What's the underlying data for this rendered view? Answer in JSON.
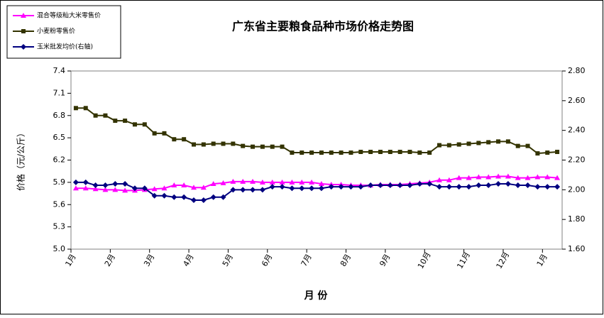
{
  "chart_data": {
    "type": "line",
    "title": "广东省主要粮食品种市场价格走势图",
    "y_label": "价格（元/公斤）",
    "x_label": "月 份",
    "categories": [
      "1月",
      null,
      null,
      null,
      "2月",
      null,
      null,
      null,
      "3月",
      null,
      null,
      null,
      "4月",
      null,
      null,
      null,
      "5月",
      null,
      null,
      null,
      "6月",
      null,
      null,
      null,
      "7月",
      null,
      null,
      null,
      "8月",
      null,
      null,
      null,
      "9月",
      null,
      null,
      null,
      "10月",
      null,
      null,
      null,
      "11月",
      null,
      null,
      null,
      "12月",
      null,
      null,
      null,
      "1月",
      null
    ],
    "series": [
      {
        "name": "混合等级籼大米零售价",
        "color": "#ff00ff",
        "marker": "triangle",
        "axis": "y",
        "values": [
          5.82,
          5.82,
          5.81,
          5.8,
          5.8,
          5.79,
          5.79,
          5.8,
          5.81,
          5.82,
          5.86,
          5.86,
          5.83,
          5.83,
          5.88,
          5.89,
          5.91,
          5.91,
          5.91,
          5.9,
          5.9,
          5.9,
          5.9,
          5.9,
          5.9,
          5.88,
          5.87,
          5.87,
          5.86,
          5.86,
          5.86,
          5.87,
          5.87,
          5.87,
          5.88,
          5.89,
          5.9,
          5.93,
          5.93,
          5.96,
          5.96,
          5.97,
          5.97,
          5.98,
          5.98,
          5.96,
          5.96,
          5.97,
          5.97,
          5.96
        ]
      },
      {
        "name": "小麦粉零售价",
        "color": "#333300",
        "marker": "square",
        "axis": "y",
        "values": [
          6.9,
          6.9,
          6.8,
          6.8,
          6.73,
          6.73,
          6.68,
          6.68,
          6.56,
          6.56,
          6.48,
          6.48,
          6.41,
          6.41,
          6.42,
          6.42,
          6.42,
          6.39,
          6.38,
          6.38,
          6.38,
          6.38,
          6.3,
          6.3,
          6.3,
          6.3,
          6.3,
          6.3,
          6.3,
          6.31,
          6.31,
          6.31,
          6.31,
          6.31,
          6.31,
          6.3,
          6.3,
          6.4,
          6.4,
          6.41,
          6.42,
          6.43,
          6.44,
          6.45,
          6.45,
          6.39,
          6.39,
          6.29,
          6.3,
          6.31
        ]
      },
      {
        "name": "玉米批发均价(右轴)",
        "color": "#000080",
        "marker": "diamond",
        "axis": "y2",
        "values": [
          2.05,
          2.05,
          2.03,
          2.03,
          2.04,
          2.04,
          2.01,
          2.01,
          1.96,
          1.96,
          1.95,
          1.95,
          1.93,
          1.93,
          1.95,
          1.95,
          2.0,
          2.0,
          2.0,
          2.0,
          2.02,
          2.02,
          2.01,
          2.01,
          2.01,
          2.01,
          2.02,
          2.02,
          2.02,
          2.02,
          2.03,
          2.03,
          2.03,
          2.03,
          2.03,
          2.04,
          2.04,
          2.02,
          2.02,
          2.02,
          2.02,
          2.03,
          2.03,
          2.04,
          2.04,
          2.03,
          2.03,
          2.02,
          2.02,
          2.02
        ]
      }
    ],
    "ylim": [
      5.0,
      7.4
    ],
    "yticks": [
      {
        "value": 5.0,
        "label": "5.0"
      },
      5.3,
      5.6,
      5.9,
      6.2,
      6.5,
      6.8,
      7.1,
      7.4
    ],
    "y2lim": [
      1.6,
      2.8
    ],
    "y2ticks": [
      {
        "value": 1.6,
        "label": "1.60"
      },
      {
        "value": 1.8,
        "label": "1.80"
      },
      {
        "value": 2.0,
        "label": "2.00"
      },
      {
        "value": 2.2,
        "label": "2.20"
      },
      {
        "value": 2.4,
        "label": "2.40"
      },
      {
        "value": 2.6,
        "label": "2.60"
      },
      {
        "value": 2.8,
        "label": "2.80"
      }
    ],
    "grid": false,
    "legend": "top-left"
  }
}
